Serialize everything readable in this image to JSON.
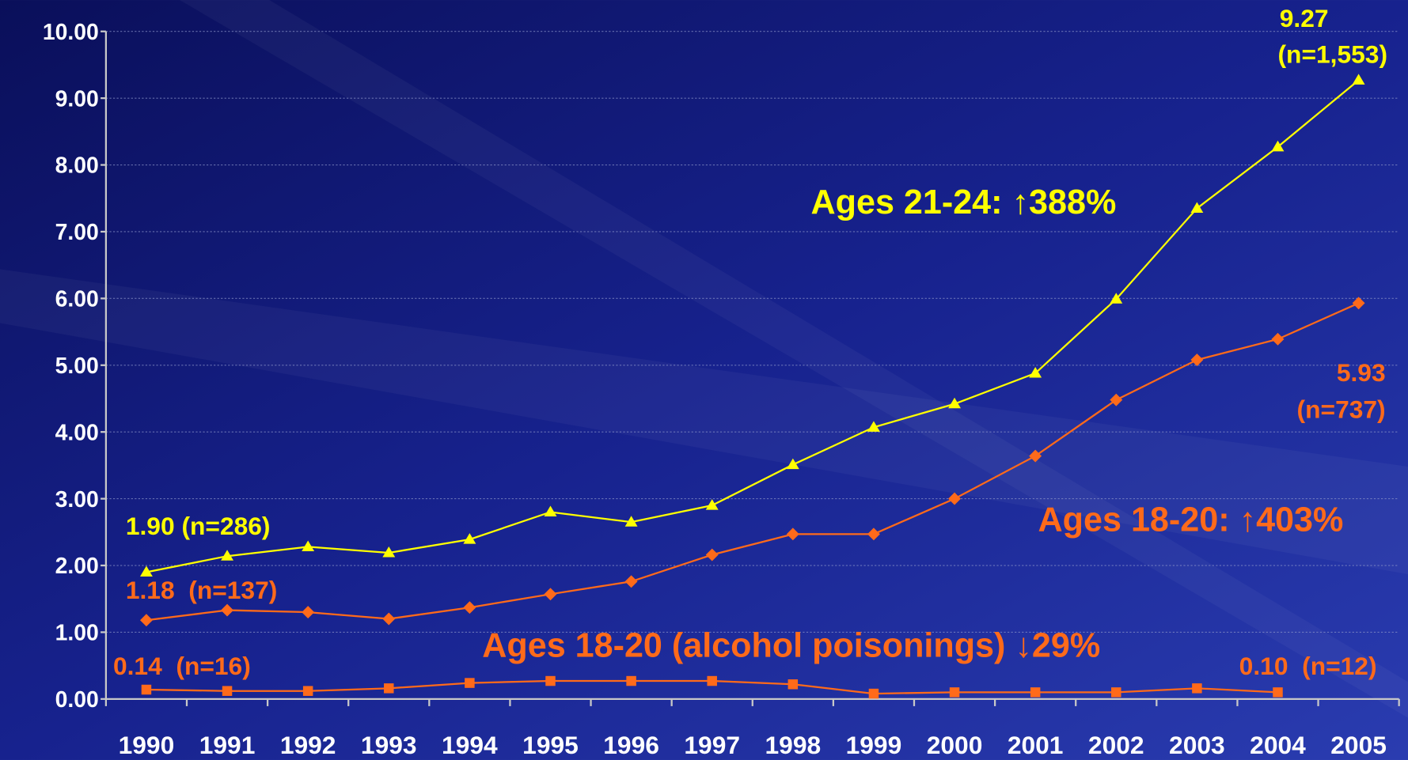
{
  "chart_data": {
    "type": "line",
    "categories": [
      "1990",
      "1991",
      "1992",
      "1993",
      "1994",
      "1995",
      "1996",
      "1997",
      "1998",
      "1999",
      "2000",
      "2001",
      "2002",
      "2003",
      "2004",
      "2005"
    ],
    "series": [
      {
        "color": "#ffff00",
        "marker": "triangle",
        "values": [
          1.9,
          2.14,
          2.28,
          2.19,
          2.39,
          2.8,
          2.65,
          2.9,
          3.51,
          4.07,
          4.42,
          4.88,
          5.99,
          7.35,
          8.27,
          9.27
        ]
      },
      {
        "color": "#ff6a1a",
        "marker": "diamond",
        "values": [
          1.18,
          1.33,
          1.3,
          1.2,
          1.37,
          1.57,
          1.76,
          2.16,
          2.47,
          2.47,
          3.0,
          3.64,
          4.48,
          5.08,
          5.39,
          5.93
        ]
      },
      {
        "color": "#ff6a1a",
        "marker": "square",
        "values": [
          0.14,
          0.12,
          0.12,
          0.16,
          0.24,
          0.27,
          0.27,
          0.27,
          0.22,
          0.08,
          0.1,
          0.1,
          0.1,
          0.16,
          0.1,
          null
        ]
      }
    ],
    "ylim": [
      0,
      10
    ],
    "yticks": [
      {
        "value": 0,
        "label": "0.00"
      },
      {
        "value": 1,
        "label": "1.00"
      },
      {
        "value": 2,
        "label": "2.00"
      },
      {
        "value": 3,
        "label": "3.00"
      },
      {
        "value": 4,
        "label": "4.00"
      },
      {
        "value": 5,
        "label": "5.00"
      },
      {
        "value": 6,
        "label": "6.00"
      },
      {
        "value": 7,
        "label": "7.00"
      },
      {
        "value": 8,
        "label": "8.00"
      },
      {
        "value": 9,
        "label": "9.00"
      },
      {
        "value": 10,
        "label": "10.00"
      }
    ],
    "grid": true,
    "annotations": [
      "9.27",
      "(n=1,553)",
      "Ages 21-24: ↑388%",
      "1.90 (n=286)",
      "5.93",
      "(n=737)",
      "Ages 18-20: ↑403%",
      "1.18  (n=137)",
      "Ages 18-20 (alcohol poisonings) ↓29%",
      "0.14  (n=16)",
      "0.10  (n=12)"
    ]
  }
}
